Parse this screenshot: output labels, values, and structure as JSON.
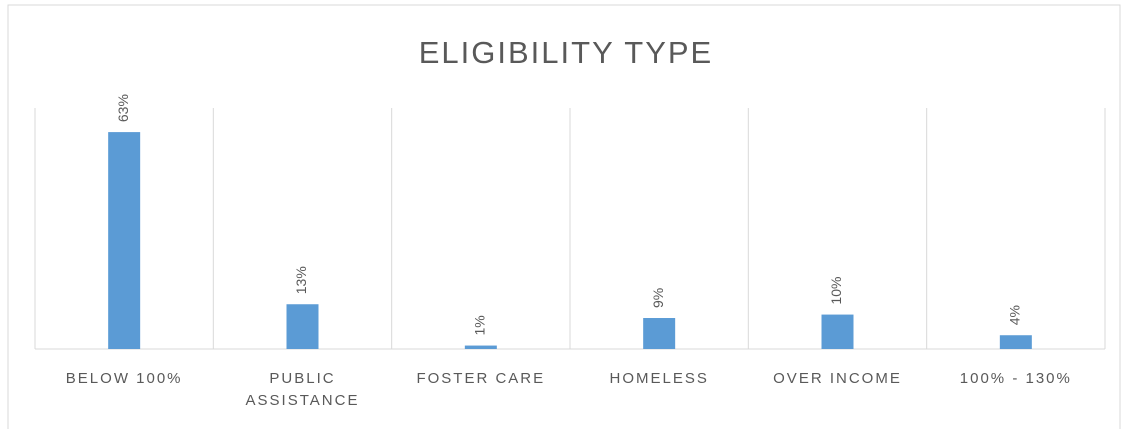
{
  "chart_data": {
    "type": "bar",
    "title": "ELIGIBILITY TYPE",
    "categories": [
      "BELOW 100%",
      "PUBLIC ASSISTANCE",
      "FOSTER CARE",
      "HOMELESS",
      "OVER INCOME",
      "100% - 130%"
    ],
    "values": [
      63,
      13,
      1,
      9,
      10,
      4
    ],
    "value_labels": [
      "63%",
      "13%",
      "1%",
      "9%",
      "10%",
      "4%"
    ],
    "color": "#5b9bd5",
    "ylim": [
      0,
      70
    ]
  }
}
